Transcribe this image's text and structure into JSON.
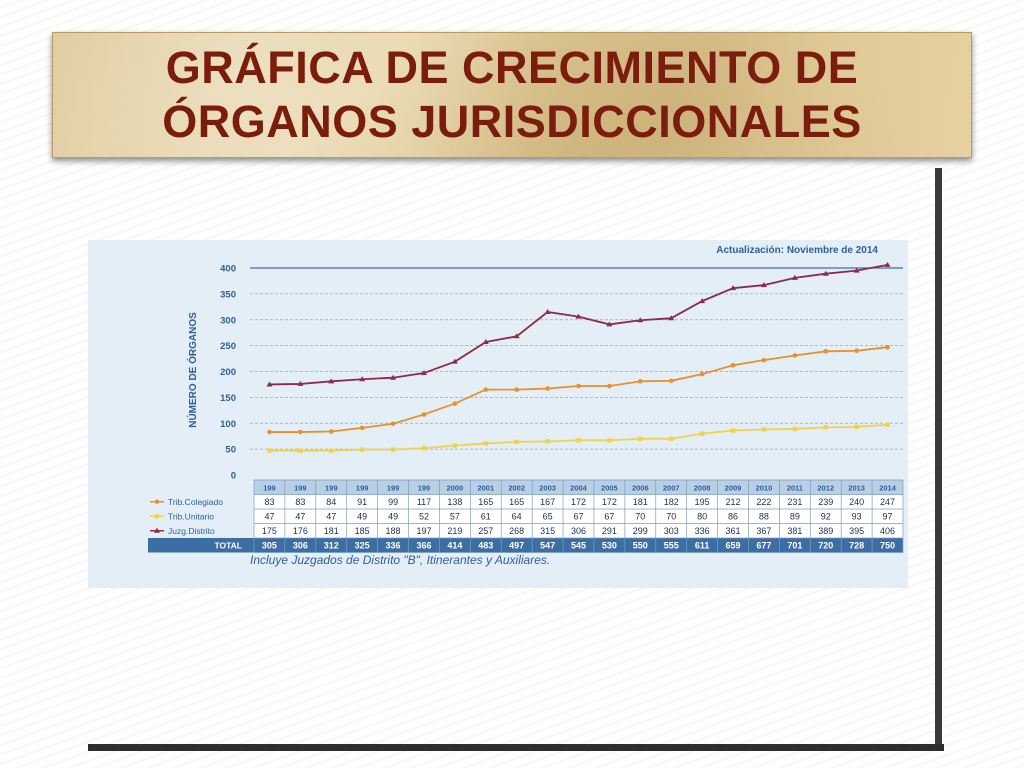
{
  "slide": {
    "title_line1": "GRÁFICA DE CRECIMIENTO DE",
    "title_line2": "ÓRGANOS JURISDICCIONALES"
  },
  "chart_data": {
    "type": "line",
    "title": "",
    "update_note": "Actualización: Noviembre de 2014",
    "ylabel": "NÚMERO DE ÓRGANOS",
    "xlabel": "",
    "ylim": [
      0,
      400
    ],
    "yticks": [
      "0",
      "50",
      "100",
      "150",
      "200",
      "250",
      "300",
      "350",
      "400"
    ],
    "grid": true,
    "categories": [
      "199",
      "199",
      "199",
      "199",
      "199",
      "199",
      "2000",
      "2001",
      "2002",
      "2003",
      "2004",
      "2005",
      "2006",
      "2007",
      "2008",
      "2009",
      "2010",
      "2011",
      "2012",
      "2013",
      "2014"
    ],
    "series": [
      {
        "name": "Trib.Colegiado",
        "color": "#e8902a",
        "values": [
          83,
          83,
          84,
          91,
          99,
          117,
          138,
          165,
          165,
          167,
          172,
          172,
          181,
          182,
          195,
          212,
          222,
          231,
          239,
          240,
          247
        ]
      },
      {
        "name": "Trib.Unitario",
        "color": "#f2d24a",
        "values": [
          47,
          47,
          47,
          49,
          49,
          52,
          57,
          61,
          64,
          65,
          67,
          67,
          70,
          70,
          80,
          86,
          88,
          89,
          92,
          93,
          97
        ]
      },
      {
        "name": "Juzg.Distrito",
        "color": "#8e2a4a",
        "values": [
          175,
          176,
          181,
          185,
          188,
          197,
          219,
          257,
          268,
          315,
          306,
          291,
          299,
          303,
          336,
          361,
          367,
          381,
          389,
          395,
          406
        ]
      }
    ],
    "total": {
      "label": "TOTAL",
      "values": [
        305,
        306,
        312,
        325,
        336,
        366,
        414,
        483,
        497,
        547,
        545,
        530,
        550,
        555,
        611,
        659,
        677,
        701,
        720,
        728,
        750
      ]
    },
    "footnote": "Incluye Juzgados de Distrito \"B\", Itinerantes y Auxiliares.",
    "colors": {
      "axis_line": "#3b6fa8",
      "grid": "#8fa9c6",
      "table_header": "#b9cfe6",
      "table_total": "#3d6ea3"
    }
  }
}
